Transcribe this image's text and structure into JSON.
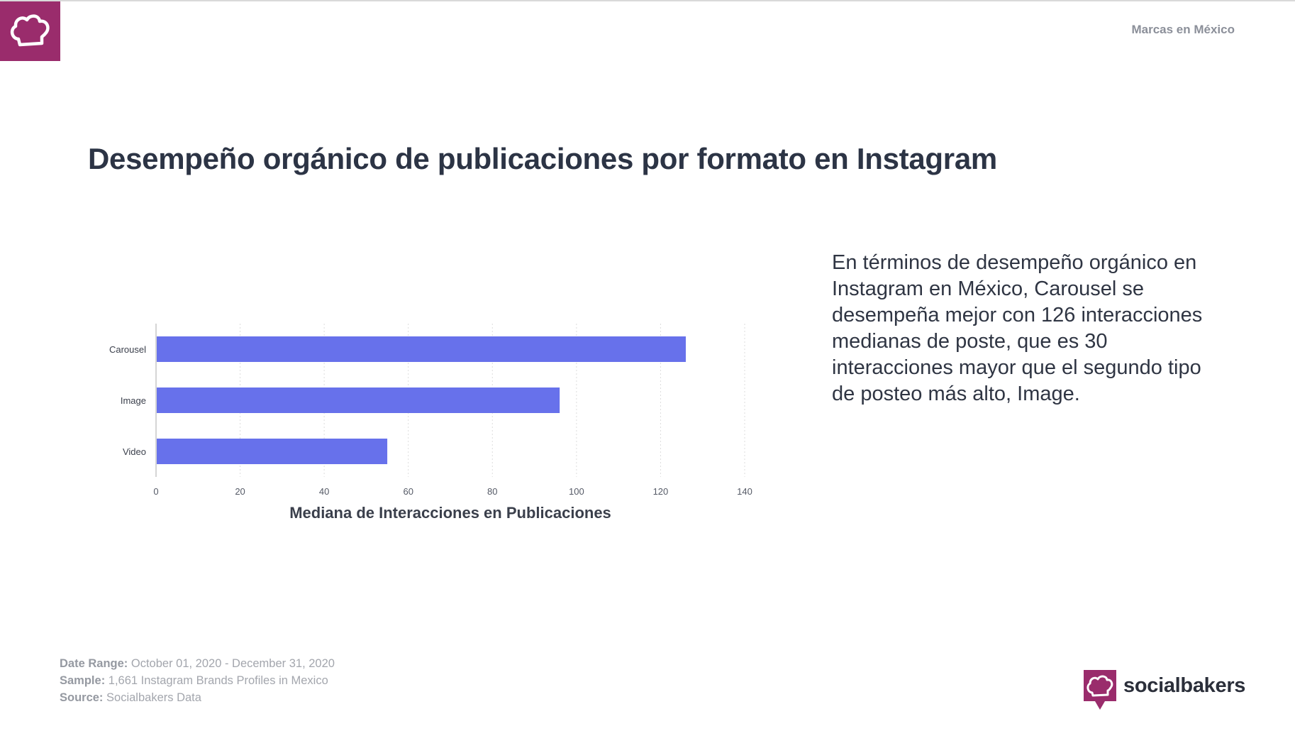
{
  "header": {
    "region_label": "Marcas en México",
    "logo_icon": "chef-hat-icon"
  },
  "page": {
    "title": "Desempeño orgánico de publicaciones por formato en Instagram"
  },
  "insight": {
    "text": "En términos de desempeño orgánico en Instagram en México, Carousel se desempeña mejor con 126 interacciones medianas de poste, que es 30 interacciones mayor que el segundo tipo de posteo más alto, Image."
  },
  "chart_data": {
    "type": "bar",
    "orientation": "horizontal",
    "categories": [
      "Carousel",
      "Image",
      "Video"
    ],
    "values": [
      126,
      96,
      55
    ],
    "xlabel": "Mediana de Interacciones en Publicaciones",
    "ylabel": "",
    "xlim": [
      0,
      140
    ],
    "xticks": [
      0,
      20,
      40,
      60,
      80,
      100,
      120,
      140
    ],
    "grid": true,
    "bar_color": "#6771eb"
  },
  "footer": {
    "date_range_label": "Date Range:",
    "date_range_value": "October 01, 2020 - December 31, 2020",
    "sample_label": "Sample:",
    "sample_value": "1,661 Instagram Brands Profiles in Mexico",
    "source_label": "Source:",
    "source_value": "Socialbakers Data"
  },
  "brand": {
    "name": "socialbakers",
    "icon": "chef-hat-speech-icon"
  },
  "colors": {
    "brand": "#9a2c6c",
    "title": "#2c3445",
    "bar": "#6771eb"
  }
}
